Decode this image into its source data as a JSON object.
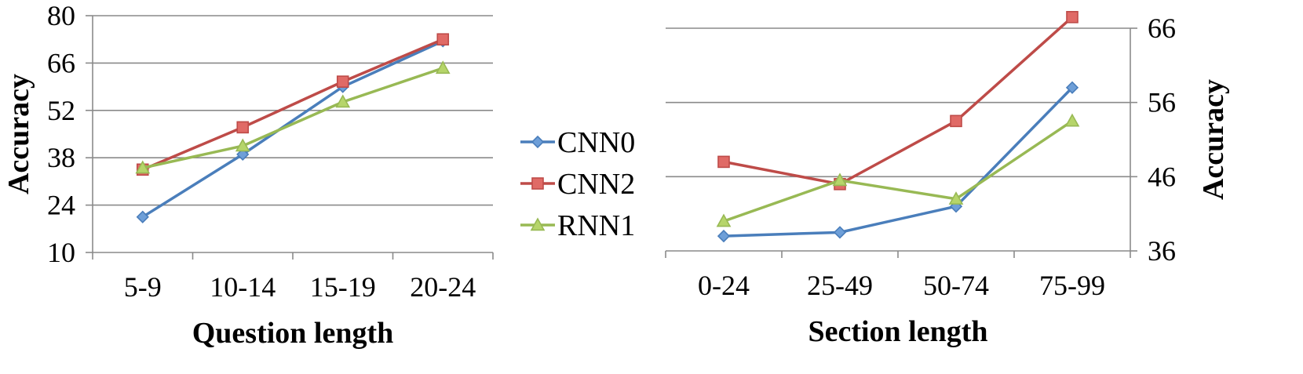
{
  "chart_data": [
    {
      "type": "line",
      "xlabel": "Question length",
      "ylabel": "Accuracy",
      "categories": [
        "5-9",
        "10-14",
        "15-19",
        "20-24"
      ],
      "ylim": [
        10,
        80
      ],
      "yticks": [
        10,
        24,
        38,
        52,
        66,
        80
      ],
      "y_axis_side": "left",
      "grid": true,
      "series": [
        {
          "name": "CNN0",
          "values": [
            20.5,
            39,
            59,
            72.5
          ]
        },
        {
          "name": "CNN2",
          "values": [
            34.5,
            47,
            60.5,
            73
          ]
        },
        {
          "name": "RNN1",
          "values": [
            35,
            41.5,
            54.5,
            64.5
          ]
        }
      ]
    },
    {
      "type": "line",
      "xlabel": "Section length",
      "ylabel": "Accuracy",
      "categories": [
        "0-24",
        "25-49",
        "50-74",
        "75-99"
      ],
      "ylim": [
        36,
        66
      ],
      "yticks": [
        36,
        46,
        56,
        66
      ],
      "y_axis_side": "right",
      "grid": true,
      "series": [
        {
          "name": "CNN0",
          "values": [
            38,
            38.5,
            42,
            58
          ]
        },
        {
          "name": "CNN2",
          "values": [
            48,
            45,
            53.5,
            67.5
          ]
        },
        {
          "name": "RNN1",
          "values": [
            40,
            45.5,
            43,
            53.5
          ]
        }
      ]
    }
  ],
  "legend": {
    "placement": "center",
    "items": [
      {
        "name": "CNN0",
        "color": "#4a7ebb",
        "marker": "diamond"
      },
      {
        "name": "CNN2",
        "color": "#be4b48",
        "marker": "square"
      },
      {
        "name": "RNN1",
        "color": "#98b954",
        "marker": "triangle"
      }
    ]
  },
  "colors": {
    "CNN0": "#4a7ebb",
    "CNN2": "#be4b48",
    "RNN1": "#98b954",
    "CNN0_fill": "#6e9fd8",
    "CNN2_fill": "#e06a66",
    "RNN1_fill": "#b6d56a"
  }
}
